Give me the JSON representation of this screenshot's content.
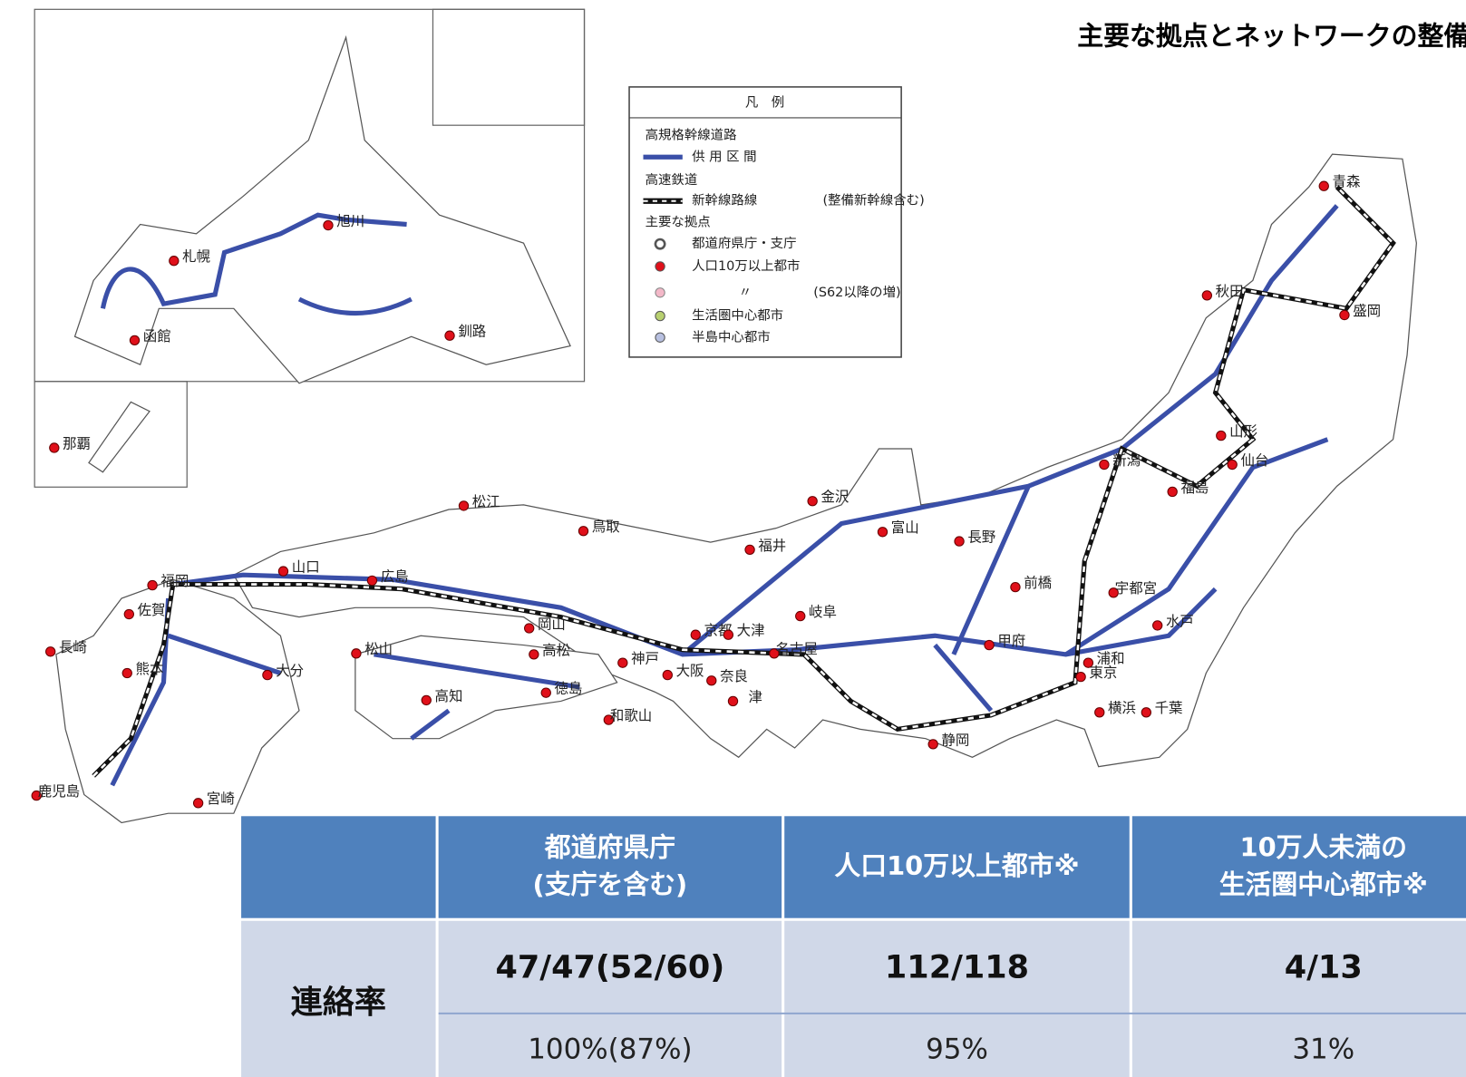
{
  "title": "主要な拠点とネットワークの整備状況",
  "map": {
    "cities": [
      "旭川",
      "札幌",
      "函館",
      "釧路",
      "那覇",
      "青森",
      "秋田",
      "盛岡",
      "山形",
      "仙台",
      "新潟",
      "福島",
      "金沢",
      "富山",
      "長野",
      "福井",
      "松江",
      "鳥取",
      "山口",
      "広島",
      "福岡",
      "佐賀",
      "長崎",
      "熊本",
      "大分",
      "松山",
      "岡山",
      "高松",
      "徳島",
      "高知",
      "神戸",
      "大阪",
      "京都",
      "大津",
      "奈良",
      "和歌山",
      "津",
      "名古屋",
      "岐阜",
      "甲府",
      "前橋",
      "宇都宮",
      "水戸",
      "浦和",
      "東京",
      "横浜",
      "千葉",
      "静岡",
      "鹿児島",
      "宮崎"
    ]
  },
  "legend": {
    "title": "凡　例",
    "items": [
      "高規格幹線道路",
      "供 用 区 間",
      "高速鉄道",
      "新幹線路線",
      "(整備新幹線含む)",
      "主要な拠点",
      "都道府県庁・支庁",
      "人口10万以上都市",
      "〃",
      "(S62以降の増)",
      "生活圏中心都市",
      "半島中心都市"
    ]
  },
  "table": {
    "headers": [
      [
        "都道府県庁",
        "(支庁を含む)"
      ],
      [
        "人口10万以上都市※"
      ],
      [
        "10万人未満の",
        "生活圏中心都市※"
      ]
    ],
    "row_label": "連絡率",
    "counts": [
      "47/47(52/60)",
      "112/118",
      "4/13"
    ],
    "rates": [
      "100%(87%)",
      "95%",
      "31%"
    ]
  }
}
